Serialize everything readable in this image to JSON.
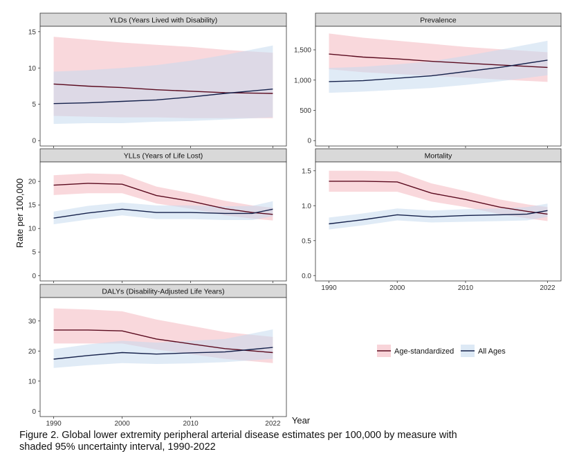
{
  "figure": {
    "ylabel": "Rate per 100,000",
    "xlabel": "Year",
    "caption_line1": "Figure 2. Global lower extremity peripheral arterial disease estimates per 100,000 by measure with",
    "caption_line2": "shaded 95% uncertainty interval, 1990-2022"
  },
  "legend": {
    "items": [
      {
        "label": "Age-standardized",
        "line_color": "#5a0a1e",
        "fill_color": "#f4b8c0"
      },
      {
        "label": "All Ages",
        "line_color": "#14204a",
        "fill_color": "#c6dbef"
      }
    ]
  },
  "chart_data": [
    {
      "type": "line",
      "title": "YLDs (Years Lived with Disability)",
      "xlim": [
        1990,
        2022
      ],
      "ylim": [
        0,
        15
      ],
      "x_ticks": [
        1990,
        2000,
        2010,
        2022
      ],
      "x_tick_labels": [
        "1990",
        "2000",
        "2010",
        "2022"
      ],
      "y_ticks": [
        0,
        5,
        10,
        15
      ],
      "y_tick_labels": [
        "0",
        "5",
        "10",
        "15"
      ],
      "x": [
        1990,
        1995,
        2000,
        2005,
        2010,
        2015,
        2022
      ],
      "series": [
        {
          "name": "Age-standardized",
          "values": [
            7.8,
            7.5,
            7.3,
            7.0,
            6.8,
            6.6,
            6.5
          ],
          "lower": [
            3.4,
            3.3,
            3.2,
            3.2,
            3.1,
            3.1,
            3.1
          ],
          "upper": [
            14.3,
            13.9,
            13.5,
            13.2,
            12.9,
            12.5,
            12.1
          ]
        },
        {
          "name": "All Ages",
          "values": [
            5.1,
            5.2,
            5.4,
            5.6,
            6.0,
            6.5,
            7.1
          ],
          "lower": [
            2.3,
            2.4,
            2.4,
            2.6,
            2.7,
            2.9,
            3.2
          ],
          "upper": [
            9.5,
            9.7,
            10.0,
            10.4,
            11.0,
            11.8,
            13.1
          ]
        }
      ]
    },
    {
      "type": "line",
      "title": "Prevalence",
      "xlim": [
        1990,
        2022
      ],
      "ylim": [
        0,
        1800
      ],
      "x_ticks": [
        1990,
        2000,
        2010,
        2022
      ],
      "x_tick_labels": [
        "1990",
        "2000",
        "2010",
        "2022"
      ],
      "y_ticks": [
        0,
        500,
        1000,
        1500
      ],
      "y_tick_labels": [
        "0",
        "500",
        "1,000",
        "1,500"
      ],
      "x": [
        1990,
        1995,
        2000,
        2005,
        2010,
        2015,
        2022
      ],
      "series": [
        {
          "name": "Age-standardized",
          "values": [
            1430,
            1380,
            1350,
            1310,
            1280,
            1250,
            1210
          ],
          "lower": [
            1180,
            1130,
            1100,
            1070,
            1040,
            1010,
            970
          ],
          "upper": [
            1770,
            1700,
            1650,
            1600,
            1550,
            1510,
            1460
          ]
        },
        {
          "name": "All Ages",
          "values": [
            975,
            990,
            1030,
            1070,
            1140,
            1210,
            1330
          ],
          "lower": [
            790,
            810,
            840,
            870,
            920,
            980,
            1080
          ],
          "upper": [
            1200,
            1220,
            1260,
            1310,
            1400,
            1500,
            1650
          ]
        }
      ]
    },
    {
      "type": "line",
      "title": "YLLs (Years of Life Lost)",
      "xlim": [
        1990,
        2022
      ],
      "ylim": [
        0,
        23
      ],
      "x_ticks": [
        1990,
        2000,
        2010,
        2022
      ],
      "x_tick_labels": [
        "1990",
        "2000",
        "2010",
        "2022"
      ],
      "y_ticks": [
        0,
        5,
        10,
        15,
        20
      ],
      "y_tick_labels": [
        "0",
        "5",
        "10",
        "15",
        "20"
      ],
      "x": [
        1990,
        1995,
        2000,
        2005,
        2010,
        2015,
        2019,
        2022
      ],
      "series": [
        {
          "name": "Age-standardized",
          "values": [
            19.2,
            19.6,
            19.4,
            17.0,
            15.8,
            14.2,
            13.4,
            13.0
          ],
          "lower": [
            17.1,
            17.5,
            17.5,
            15.3,
            14.2,
            12.8,
            12.1,
            11.7
          ],
          "upper": [
            21.3,
            21.7,
            21.5,
            18.9,
            17.5,
            15.9,
            14.9,
            14.4
          ]
        },
        {
          "name": "All Ages",
          "values": [
            12.2,
            13.3,
            14.1,
            13.4,
            13.4,
            13.2,
            13.2,
            14.1
          ],
          "lower": [
            10.9,
            11.9,
            12.8,
            12.0,
            12.0,
            11.8,
            11.8,
            12.6
          ],
          "upper": [
            13.6,
            14.8,
            15.5,
            14.9,
            14.9,
            14.7,
            14.8,
            15.8
          ]
        }
      ]
    },
    {
      "type": "line",
      "title": "Mortality",
      "xlim": [
        1990,
        2022
      ],
      "ylim": [
        0,
        1.55
      ],
      "x_ticks": [
        1990,
        2000,
        2010,
        2022
      ],
      "x_tick_labels": [
        "1990",
        "2000",
        "2010",
        "2022"
      ],
      "y_ticks": [
        0,
        0.5,
        1,
        1.5
      ],
      "y_tick_labels": [
        "0.0",
        "0.5",
        "1.0",
        "1.5"
      ],
      "x": [
        1990,
        1995,
        2000,
        2005,
        2010,
        2015,
        2019,
        2022
      ],
      "series": [
        {
          "name": "Age-standardized",
          "values": [
            1.35,
            1.35,
            1.34,
            1.18,
            1.09,
            0.98,
            0.92,
            0.88
          ],
          "lower": [
            1.2,
            1.2,
            1.2,
            1.06,
            0.98,
            0.88,
            0.82,
            0.78
          ],
          "upper": [
            1.5,
            1.5,
            1.49,
            1.32,
            1.21,
            1.09,
            1.02,
            0.98
          ]
        },
        {
          "name": "All Ages",
          "values": [
            0.74,
            0.8,
            0.87,
            0.84,
            0.86,
            0.87,
            0.88,
            0.93
          ],
          "lower": [
            0.66,
            0.72,
            0.79,
            0.76,
            0.77,
            0.78,
            0.79,
            0.84
          ],
          "upper": [
            0.83,
            0.89,
            0.96,
            0.93,
            0.95,
            0.96,
            0.98,
            1.03
          ]
        }
      ]
    },
    {
      "type": "line",
      "title": "DALYs (Disability-Adjusted Life Years)",
      "xlim": [
        1990,
        2022
      ],
      "ylim": [
        0,
        36
      ],
      "x_ticks": [
        1990,
        2000,
        2010,
        2022
      ],
      "x_tick_labels": [
        "1990",
        "2000",
        "2010",
        "2022"
      ],
      "y_ticks": [
        0,
        10,
        20,
        30
      ],
      "y_tick_labels": [
        "0",
        "10",
        "20",
        "30"
      ],
      "x": [
        1990,
        1995,
        2000,
        2005,
        2010,
        2015,
        2022
      ],
      "series": [
        {
          "name": "Age-standardized",
          "values": [
            27.0,
            27.0,
            26.7,
            24.0,
            22.4,
            20.8,
            19.5
          ],
          "lower": [
            22.5,
            22.5,
            22.5,
            20.5,
            19.0,
            17.4,
            16.0
          ],
          "upper": [
            34.2,
            33.8,
            33.2,
            30.5,
            28.4,
            26.3,
            24.7
          ]
        },
        {
          "name": "All Ages",
          "values": [
            17.3,
            18.5,
            19.5,
            19.0,
            19.4,
            19.7,
            21.2
          ],
          "lower": [
            14.4,
            15.3,
            16.0,
            15.7,
            15.9,
            16.3,
            17.4
          ],
          "upper": [
            20.6,
            22.2,
            23.4,
            22.8,
            23.4,
            24.0,
            27.2
          ]
        }
      ]
    }
  ]
}
